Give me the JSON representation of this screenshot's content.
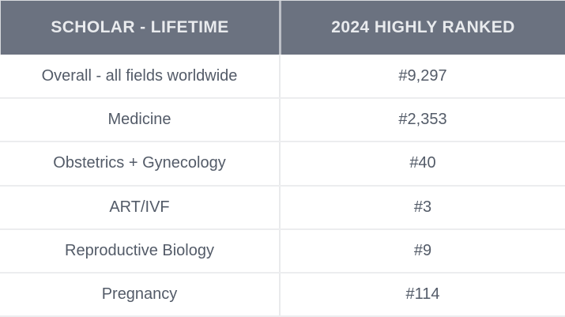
{
  "table": {
    "header": {
      "col1": "SCHOLAR - LIFETIME",
      "col2": "2024 HIGHLY RANKED"
    },
    "rows": [
      {
        "field": "Overall - all fields worldwide",
        "rank": "#9,297"
      },
      {
        "field": "Medicine",
        "rank": "#2,353"
      },
      {
        "field": "Obstetrics + Gynecology",
        "rank": "#40"
      },
      {
        "field": "ART/IVF",
        "rank": "#3"
      },
      {
        "field": "Reproductive Biology",
        "rank": "#9"
      },
      {
        "field": "Pregnancy",
        "rank": "#114"
      }
    ]
  },
  "colors": {
    "header_bg": "#6B7280",
    "header_text": "#E9EBEE",
    "body_text": "#535B68",
    "row_bg": "#FFFFFF",
    "row_border": "#ECEDEF",
    "column_divider": "#E9EAEC"
  },
  "chart_data": {
    "type": "table",
    "title": "Scholar lifetime rankings - 2024 highly ranked",
    "columns": [
      "SCHOLAR - LIFETIME",
      "2024 HIGHLY RANKED"
    ],
    "rows": [
      [
        "Overall - all fields worldwide",
        "#9,297"
      ],
      [
        "Medicine",
        "#2,353"
      ],
      [
        "Obstetrics + Gynecology",
        "#40"
      ],
      [
        "ART/IVF",
        "#3"
      ],
      [
        "Reproductive Biology",
        "#9"
      ],
      [
        "Pregnancy",
        "#114"
      ]
    ],
    "ranks_numeric": [
      9297,
      2353,
      40,
      3,
      9,
      114
    ]
  }
}
